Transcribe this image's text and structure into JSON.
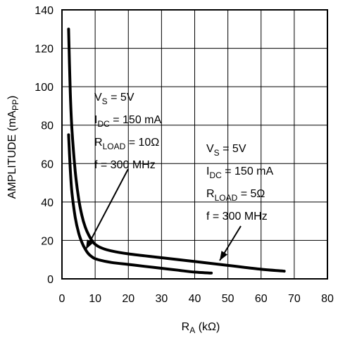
{
  "chart_data": {
    "type": "line",
    "xlabel": {
      "main": "R",
      "sub": "A",
      "rest": " (kΩ)"
    },
    "ylabel": {
      "main": "AMPLITUDE (mA",
      "sub": "PP",
      "rest": ")"
    },
    "xlim": [
      0,
      80
    ],
    "ylim": [
      0,
      140
    ],
    "xticks": [
      0,
      10,
      20,
      30,
      40,
      50,
      60,
      70,
      80
    ],
    "yticks": [
      0,
      20,
      40,
      60,
      80,
      100,
      120,
      140
    ],
    "grid": true,
    "series": [
      {
        "x": [
          2,
          2.5,
          3,
          4,
          5,
          6,
          7,
          8,
          9,
          10,
          12,
          15,
          20,
          25,
          30,
          35,
          40,
          45
        ],
        "y": [
          75,
          57,
          45,
          32,
          24,
          19,
          15.5,
          13,
          11.5,
          10.5,
          9.5,
          8.5,
          7.5,
          6.5,
          5.5,
          4.5,
          3.5,
          3
        ],
        "annotation": {
          "lines": [
            {
              "main": "V",
              "sub": "S",
              "rest": " = 5V"
            },
            {
              "main": "I",
              "sub": "DC",
              "rest": " = 150 mA"
            },
            {
              "main": "R",
              "sub": "LOAD",
              "rest": " = 10Ω"
            },
            {
              "main": "f = 300 MHz",
              "sub": "",
              "rest": ""
            }
          ]
        }
      },
      {
        "x": [
          2,
          2.5,
          3,
          4,
          5,
          6,
          7,
          8,
          9,
          10,
          12,
          15,
          20,
          25,
          30,
          40,
          50,
          60,
          67
        ],
        "y": [
          130,
          97,
          78,
          56,
          42,
          33,
          27,
          23,
          20,
          18,
          16,
          14.5,
          13,
          12,
          11,
          9,
          7,
          5,
          4
        ],
        "annotation": {
          "lines": [
            {
              "main": "V",
              "sub": "S",
              "rest": " = 5V"
            },
            {
              "main": "I",
              "sub": "DC",
              "rest": " = 150 mA"
            },
            {
              "main": "R",
              "sub": "LOAD",
              "rest": " = 5Ω"
            },
            {
              "main": "f = 300 MHz",
              "sub": "",
              "rest": ""
            }
          ]
        }
      }
    ]
  }
}
